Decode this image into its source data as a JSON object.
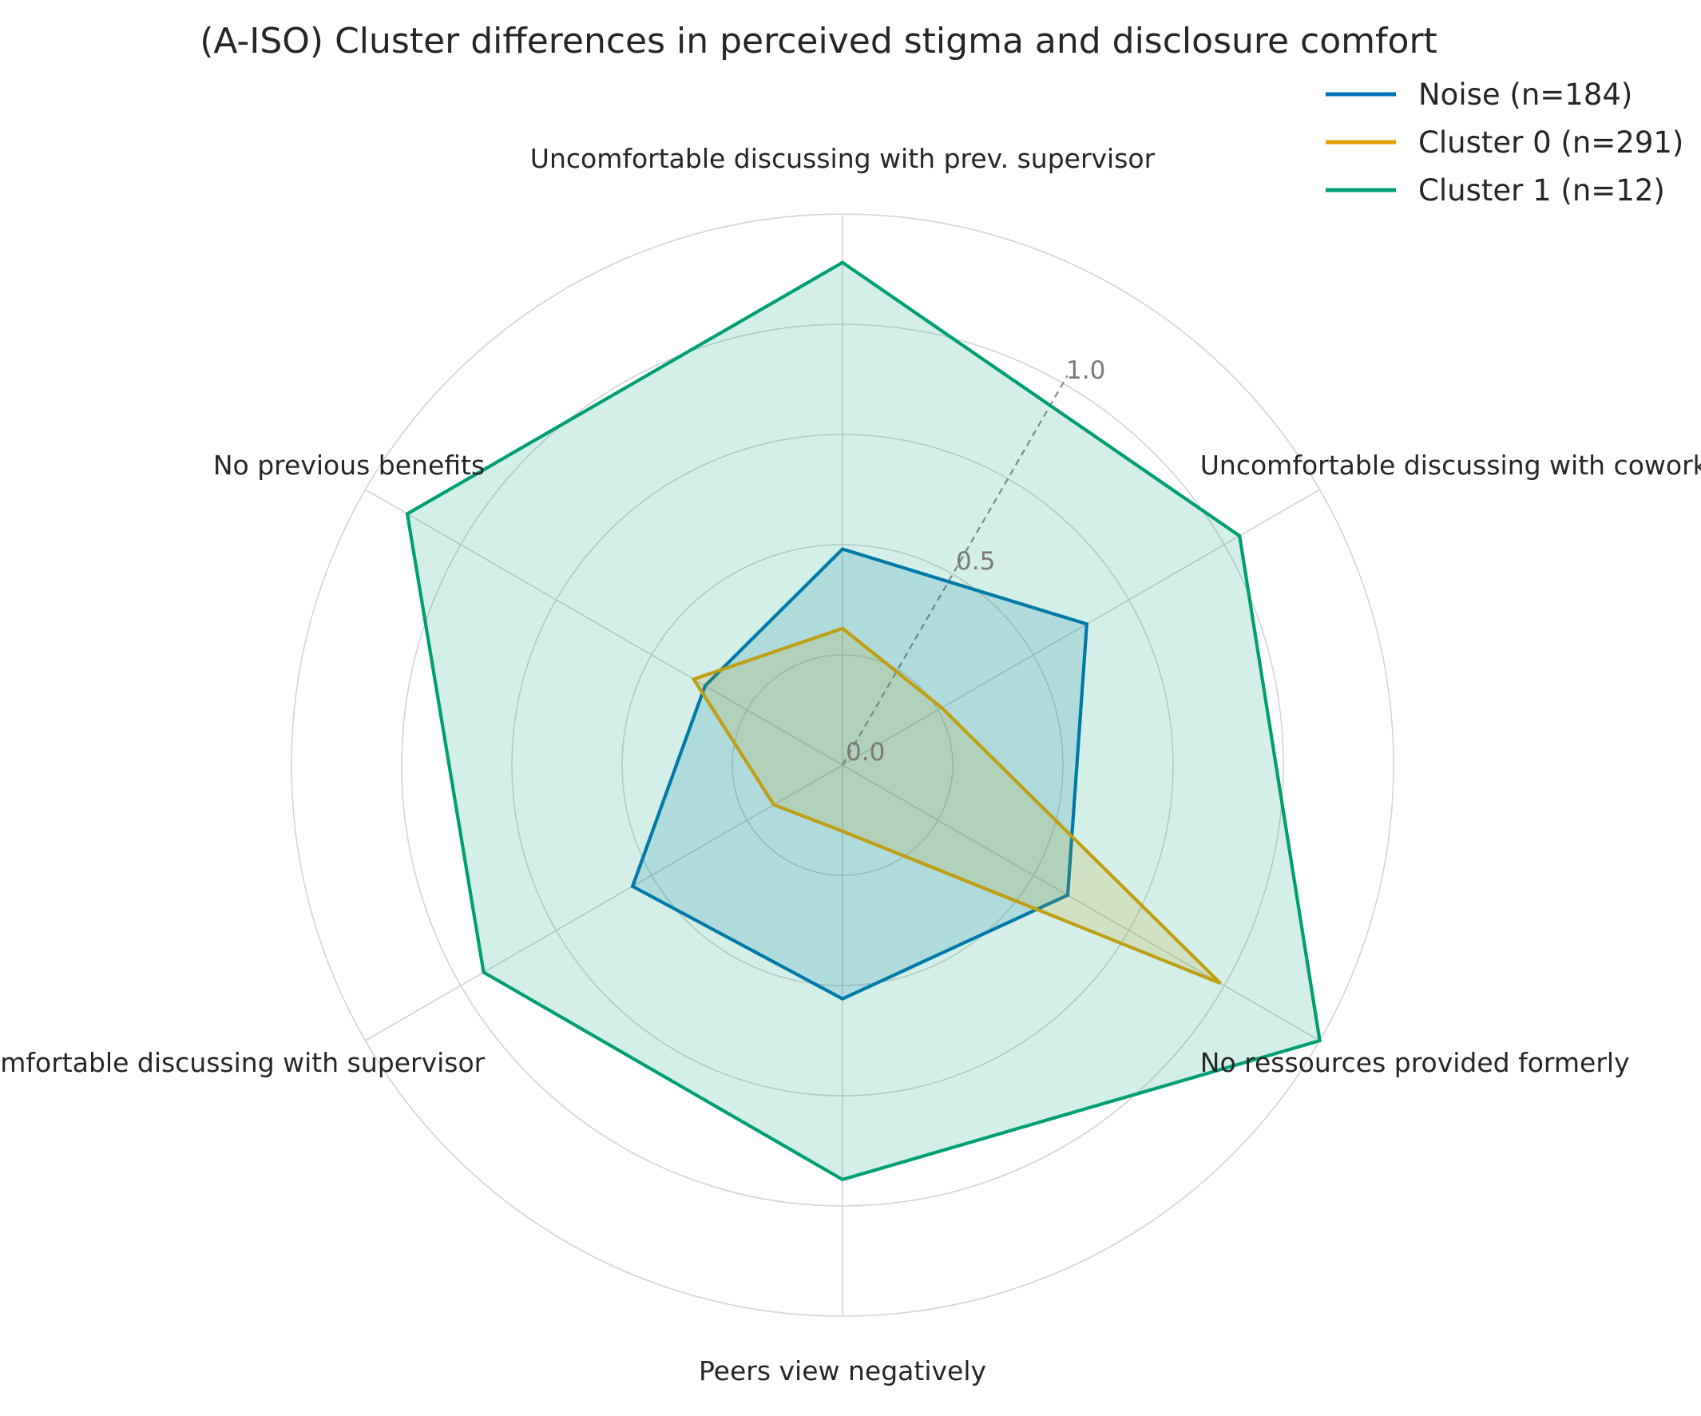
{
  "chart_data": {
    "type": "radar",
    "title": "(A-ISO) Cluster differences in perceived stigma and disclosure comfort",
    "axes": [
      "Uncomfortable discussing with prev. supervisor",
      "Uncomfortable discussing with coworkers",
      "No ressources provided formerly",
      "Peers view negatively",
      "Uncomfortable discussing with supervisor",
      "No previous benefits"
    ],
    "rlim": [
      0,
      1.25
    ],
    "rticks": [
      {
        "value": 0.0,
        "label": "0.0"
      },
      {
        "value": 0.5,
        "label": "0.5"
      },
      {
        "value": 1.0,
        "label": "1.0"
      }
    ],
    "grid": true,
    "legend_position": "top-right",
    "series": [
      {
        "name": "Noise (n=184)",
        "color": "#0072B2",
        "values": [
          0.49,
          0.64,
          0.59,
          0.53,
          0.55,
          0.36
        ]
      },
      {
        "name": "Cluster 0 (n=291)",
        "color": "#E69F00",
        "values": [
          0.31,
          0.26,
          0.99,
          0.15,
          0.18,
          0.39
        ]
      },
      {
        "name": "Cluster 1 (n=12)",
        "color": "#009E73",
        "values": [
          1.14,
          1.04,
          1.25,
          0.94,
          0.94,
          1.14
        ]
      }
    ]
  }
}
